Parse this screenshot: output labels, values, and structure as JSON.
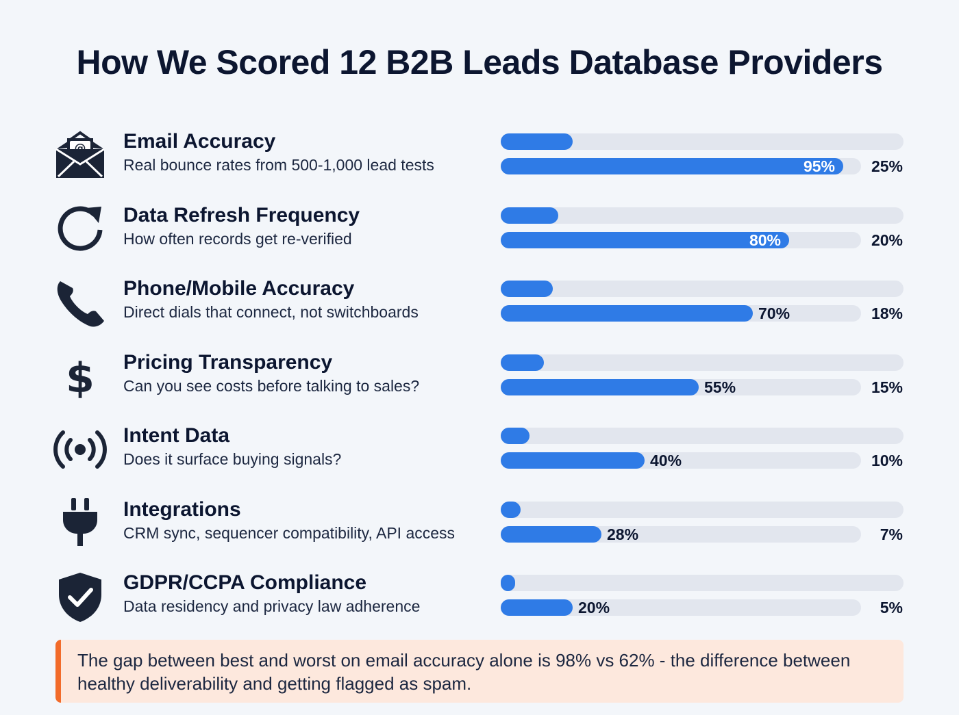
{
  "title": "How We Scored 12 B2B Leads Database Providers",
  "chart_data": {
    "type": "bar",
    "title": "How We Scored 12 B2B Leads Database Providers",
    "categories": [
      {
        "label": "Email Accuracy",
        "description": "Real bounce rates from 500-1,000 lead tests",
        "icon": "envelope-icon",
        "score_pct": 95,
        "score_label": "95%",
        "weight_pct": 25,
        "weight_label": "25%"
      },
      {
        "label": "Data Refresh Frequency",
        "description": "How often records get re-verified",
        "icon": "refresh-icon",
        "score_pct": 80,
        "score_label": "80%",
        "weight_pct": 20,
        "weight_label": "20%"
      },
      {
        "label": "Phone/Mobile Accuracy",
        "description": "Direct dials that connect, not switchboards",
        "icon": "phone-icon",
        "score_pct": 70,
        "score_label": "70%",
        "weight_pct": 18,
        "weight_label": "18%"
      },
      {
        "label": "Pricing Transparency",
        "description": "Can you see costs before talking to sales?",
        "icon": "dollar-icon",
        "score_pct": 55,
        "score_label": "55%",
        "weight_pct": 15,
        "weight_label": "15%"
      },
      {
        "label": "Intent Data",
        "description": "Does it surface buying signals?",
        "icon": "broadcast-icon",
        "score_pct": 40,
        "score_label": "40%",
        "weight_pct": 10,
        "weight_label": "10%"
      },
      {
        "label": "Integrations",
        "description": "CRM sync, sequencer compatibility, API access",
        "icon": "plug-icon",
        "score_pct": 28,
        "score_label": "28%",
        "weight_pct": 7,
        "weight_label": "7%"
      },
      {
        "label": "GDPR/CCPA Compliance",
        "description": "Data residency and privacy law adherence",
        "icon": "shield-check-icon",
        "score_pct": 20,
        "score_label": "20%",
        "weight_pct": 5,
        "weight_label": "5%"
      }
    ],
    "series": [
      {
        "name": "weight",
        "values": [
          25,
          20,
          18,
          15,
          10,
          7,
          5
        ]
      },
      {
        "name": "score",
        "values": [
          95,
          80,
          70,
          55,
          40,
          28,
          20
        ]
      }
    ],
    "ylim": [
      0,
      100
    ]
  },
  "callout": {
    "text": "The gap between best and worst on email accuracy alone is 98% vs 62% - the difference between healthy deliverability and getting flagged as spam."
  },
  "colors": {
    "bar": "#2f7be6",
    "track": "#e2e6ee",
    "heading": "#0c1630",
    "accent": "#f26b2a",
    "callout_bg": "#fde8dd"
  }
}
